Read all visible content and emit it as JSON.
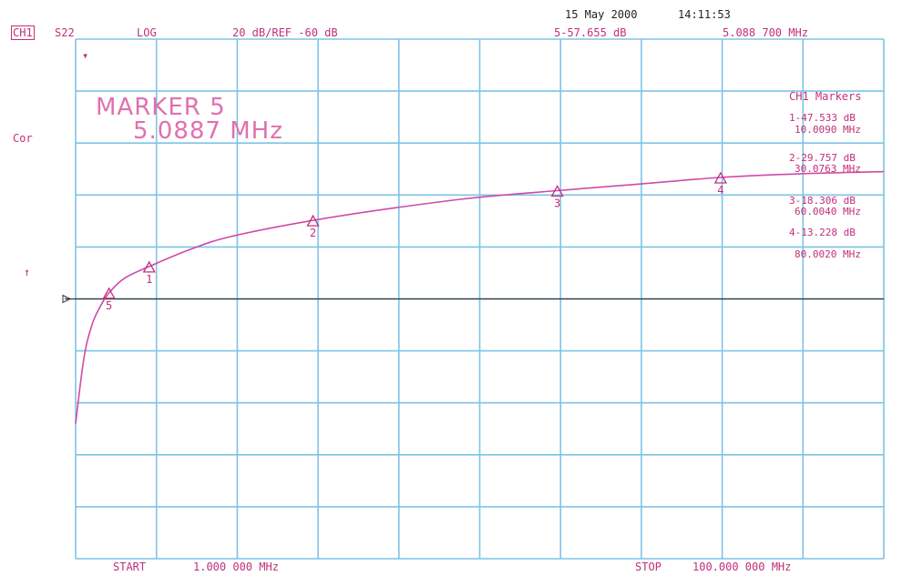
{
  "header": {
    "date": "15 May 2000",
    "time": "14:11:53",
    "channel": "CH1",
    "param": "S22",
    "format": "LOG",
    "scale": "20 dB/REF -60 dB",
    "active_marker_value": "5-57.655 dB",
    "active_marker_freq": "5.088 700 MHz"
  },
  "annotations": {
    "marker_title": "MARKER 5",
    "marker_freq": "5.0887 MHz",
    "cor_label": "Cor",
    "ref_symbol": "↑",
    "top_symbol": "▾"
  },
  "markers_panel": {
    "title": "CH1 Markers",
    "entries": [
      {
        "value": "1-47.533 dB",
        "freq": "10.0090 MHz"
      },
      {
        "value": "2-29.757 dB",
        "freq": "30.0763 MHz"
      },
      {
        "value": "3-18.306 dB",
        "freq": "60.0040 MHz"
      },
      {
        "value": "4-13.228 dB",
        "freq": "80.0020 MHz"
      }
    ]
  },
  "footer": {
    "start_label": "START",
    "start_value": "1.000 000 MHz",
    "stop_label": "STOP",
    "stop_value": "100.000 000 MHz"
  },
  "colors": {
    "grid": "#7ec3e8",
    "trace": "#d04aa8",
    "text": "#c0307a",
    "reference": "#333333"
  },
  "chart_data": {
    "type": "line",
    "title": "",
    "xlabel": "",
    "ylabel": "",
    "x_scale": "linear",
    "xlim": [
      1,
      100
    ],
    "ylim": [
      -160,
      40
    ],
    "grid": true,
    "grid_divisions": {
      "x": 10,
      "y": 10
    },
    "reference_level": -60,
    "series": [
      {
        "x": [
          1,
          2,
          3,
          4,
          5.0887,
          7,
          10.009,
          15,
          20,
          30.0763,
          40,
          50,
          60.004,
          70,
          80.002,
          90,
          100
        ],
        "y": [
          -108,
          -83,
          -70,
          -63,
          -57.655,
          -52,
          -47.533,
          -41,
          -36,
          -29.757,
          -25,
          -21,
          -18.306,
          -15.8,
          -13.228,
          -11.8,
          -11
        ]
      }
    ],
    "markers": [
      {
        "label": "1",
        "x": 10.009,
        "y": -47.533
      },
      {
        "label": "2",
        "x": 30.0763,
        "y": -29.757
      },
      {
        "label": "3",
        "x": 60.004,
        "y": -18.306
      },
      {
        "label": "4",
        "x": 80.002,
        "y": -13.228
      },
      {
        "label": "5",
        "x": 5.0887,
        "y": -57.655
      }
    ]
  }
}
